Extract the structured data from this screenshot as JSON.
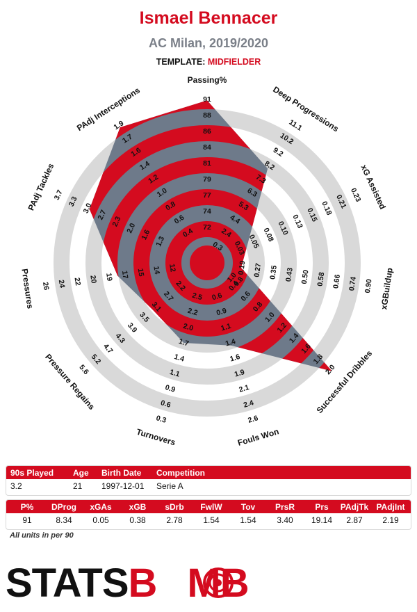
{
  "header": {
    "player": "Ismael Bennacer",
    "subtitle": "AC Milan, 2019/2020",
    "template_label": "TEMPLATE:",
    "template_value": "MIDFIELDER"
  },
  "colors": {
    "accent": "#d40b1f",
    "polygon": "#6e7a8a",
    "ring": "#d9d9d9"
  },
  "chart_data": {
    "type": "radar",
    "axes": [
      {
        "label": "Passing%",
        "ticks": [
          "72",
          "74",
          "77",
          "79",
          "81",
          "84",
          "86",
          "88",
          "91"
        ],
        "value_fraction": 0.95
      },
      {
        "label": "Deep Progressions",
        "ticks": [
          "0.3",
          "2.4",
          "4.4",
          "5.3",
          "6.3",
          "7.3",
          "8.2",
          "9.2",
          "10.2",
          "11.1"
        ],
        "value_fraction": 0.6
      },
      {
        "label": "xG Assisted",
        "ticks": [
          "0.03",
          "0.05",
          "0.08",
          "0.10",
          "0.13",
          "0.15",
          "0.18",
          "0.21",
          "0.23"
        ],
        "value_fraction": 0.13
      },
      {
        "label": "xGBuildup",
        "ticks": [
          "0.19",
          "0.27",
          "0.35",
          "0.43",
          "0.50",
          "0.58",
          "0.66",
          "0.74",
          "0.90"
        ],
        "value_fraction": 0.06
      },
      {
        "label": "Successful Dribbles",
        "ticks": [
          "0.4",
          "0.6",
          "0.8",
          "1.0",
          "1.2",
          "1.4",
          "1.6",
          "1.8",
          "2.0"
        ],
        "value_fraction": 0.97
      },
      {
        "label": "Fouls Won",
        "ticks": [
          "0.6",
          "0.9",
          "1.1",
          "1.4",
          "1.6",
          "1.9",
          "2.1",
          "2.4",
          "2.6"
        ],
        "value_fraction": 0.42
      },
      {
        "label": "Turnovers",
        "ticks": [
          "2.5",
          "2.2",
          "2.0",
          "1.7",
          "1.4",
          "1.1",
          "0.9",
          "0.6",
          "0.3"
        ],
        "value_fraction": 0.4
      },
      {
        "label": "Pressure Regains",
        "ticks": [
          "2.2",
          "2.7",
          "3.1",
          "3.5",
          "3.9",
          "4.3",
          "4.7",
          "5.2",
          "5.6"
        ],
        "value_fraction": 0.32
      },
      {
        "label": "Pressures",
        "ticks": [
          "12",
          "14",
          "15",
          "17",
          "19",
          "20",
          "22",
          "24",
          "26"
        ],
        "value_fraction": 0.45
      },
      {
        "label": "PAdj Tackles",
        "ticks": [
          "1.3",
          "1.6",
          "2.0",
          "2.3",
          "2.7",
          "3.0",
          "3.3",
          "3.7"
        ],
        "value_fraction": 0.72
      },
      {
        "label": "PAdj Interceptions",
        "ticks": [
          "0.4",
          "0.6",
          "0.8",
          "1.0",
          "1.2",
          "1.4",
          "1.6",
          "1.7",
          "1.9"
        ],
        "value_fraction": 0.94
      }
    ],
    "extra_tick_labels": [
      "1.0",
      "0.8"
    ],
    "rings": 9
  },
  "info_table": {
    "headers": [
      "90s Played",
      "Age",
      "Birth Date",
      "Competition"
    ],
    "values": [
      "3.2",
      "21",
      "1997-12-01",
      "Serie A"
    ]
  },
  "stats_table": {
    "headers": [
      "P%",
      "DProg",
      "xGAs",
      "xGB",
      "sDrb",
      "FwlW",
      "Tov",
      "PrsR",
      "Prs",
      "PAdjTk",
      "PAdjInt"
    ],
    "values": [
      "91",
      "8.34",
      "0.05",
      "0.38",
      "2.78",
      "1.54",
      "1.54",
      "3.40",
      "19.14",
      "2.87",
      "2.19"
    ]
  },
  "note": "All units in per 90",
  "logo": {
    "part1": "STATS",
    "part2": "B",
    "part3": "MB"
  }
}
